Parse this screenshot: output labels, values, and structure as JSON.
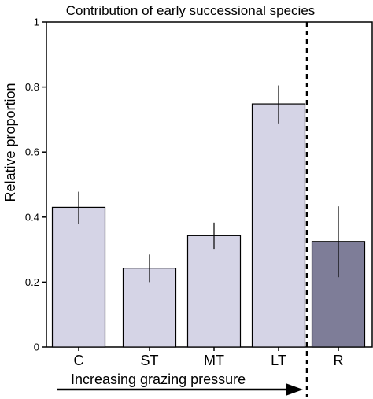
{
  "chart_data": {
    "type": "bar",
    "title": "Contribution of early successional species",
    "ylabel": "Relative proportion",
    "xlabel": "",
    "ylim": [
      0,
      1
    ],
    "yticks": [
      0,
      0.2,
      0.4,
      0.6,
      0.8,
      1
    ],
    "ytick_labels": [
      "0",
      "0.2",
      "0.4",
      "0.6",
      "0.8",
      "1"
    ],
    "categories": [
      "C",
      "ST",
      "MT",
      "LT",
      "R"
    ],
    "values": [
      0.43,
      0.243,
      0.343,
      0.748,
      0.325
    ],
    "error_low": [
      0.38,
      0.2,
      0.3,
      0.688,
      0.215
    ],
    "error_high": [
      0.478,
      0.285,
      0.383,
      0.805,
      0.433
    ],
    "bar_colors": [
      "#d5d4e6",
      "#d5d4e6",
      "#d5d4e6",
      "#d5d4e6",
      "#7e7d98"
    ],
    "grid": false,
    "annotation": {
      "arrow_label": "Increasing grazing pressure",
      "arrow_direction": "right",
      "separator": "dashed vertical line between LT and R"
    }
  }
}
